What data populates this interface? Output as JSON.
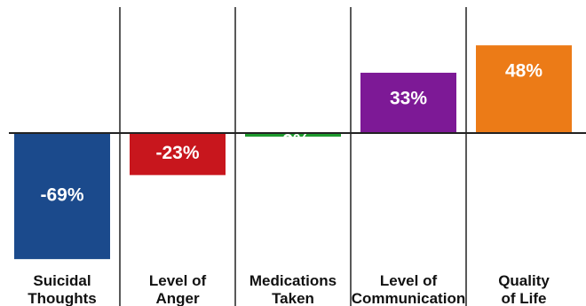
{
  "chart_data": {
    "type": "bar",
    "categories": [
      [
        "Suicidal",
        "Thoughts"
      ],
      [
        "Level of",
        "Anger"
      ],
      [
        "Medications",
        "Taken"
      ],
      [
        "Level of",
        "Communication"
      ],
      [
        "Quality",
        "of Life"
      ]
    ],
    "values": [
      -69,
      -23,
      -2,
      33,
      48
    ],
    "data_labels": [
      "-69%",
      "-23%",
      "-2%",
      "33%",
      "48%"
    ],
    "colors": [
      "#1b4a8c",
      "#c8161d",
      "#1e9a2e",
      "#7d1996",
      "#ec7b17"
    ],
    "ylim": [
      -72,
      56
    ],
    "grid": "vertical dividers between categories",
    "legend": "none"
  }
}
